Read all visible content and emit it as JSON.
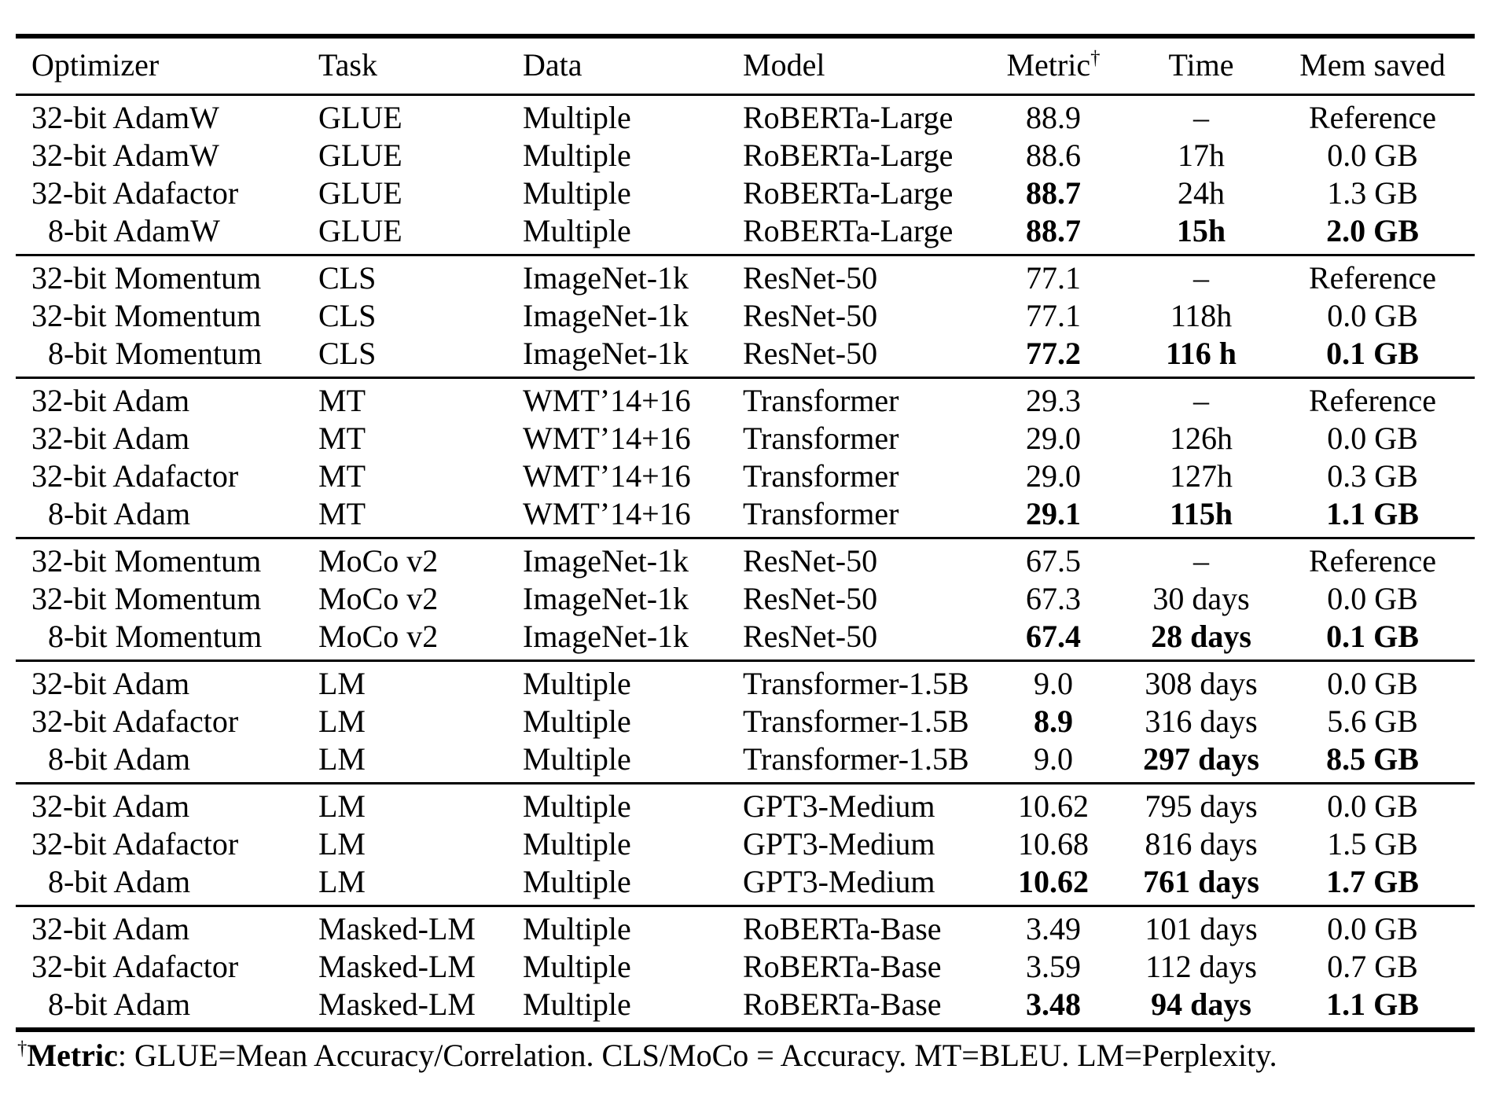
{
  "page": {
    "background": "#ffffff",
    "text_color": "#000000",
    "rule_color": "#000000"
  },
  "table": {
    "columns": [
      {
        "label": "Optimizer",
        "align": "left"
      },
      {
        "label": "Task",
        "align": "left"
      },
      {
        "label": "Data",
        "align": "left"
      },
      {
        "label": "Model",
        "align": "left"
      },
      {
        "label": "Metric",
        "sup": "†",
        "align": "center"
      },
      {
        "label": "Time",
        "align": "center"
      },
      {
        "label": "Mem saved",
        "align": "center"
      }
    ],
    "groups": [
      {
        "name": "glue",
        "rows": [
          {
            "optimizer": "32-bit AdamW",
            "indent": false,
            "task": "GLUE",
            "data": "Multiple",
            "model": "RoBERTa-Large",
            "metric": "88.9",
            "time": "–",
            "mem": "Reference",
            "bold": []
          },
          {
            "optimizer": "32-bit AdamW",
            "indent": false,
            "task": "GLUE",
            "data": "Multiple",
            "model": "RoBERTa-Large",
            "metric": "88.6",
            "time": "17h",
            "mem": "0.0 GB",
            "bold": []
          },
          {
            "optimizer": "32-bit Adafactor",
            "indent": false,
            "task": "GLUE",
            "data": "Multiple",
            "model": "RoBERTa-Large",
            "metric": "88.7",
            "time": "24h",
            "mem": "1.3 GB",
            "bold": [
              "metric"
            ]
          },
          {
            "optimizer": "8-bit AdamW",
            "indent": true,
            "task": "GLUE",
            "data": "Multiple",
            "model": "RoBERTa-Large",
            "metric": "88.7",
            "time": "15h",
            "mem": "2.0 GB",
            "bold": [
              "metric",
              "time",
              "mem"
            ]
          }
        ]
      },
      {
        "name": "cls",
        "rows": [
          {
            "optimizer": "32-bit Momentum",
            "indent": false,
            "task": "CLS",
            "data": "ImageNet-1k",
            "model": "ResNet-50",
            "metric": "77.1",
            "time": "–",
            "mem": "Reference",
            "bold": []
          },
          {
            "optimizer": "32-bit Momentum",
            "indent": false,
            "task": "CLS",
            "data": "ImageNet-1k",
            "model": "ResNet-50",
            "metric": "77.1",
            "time": "118h",
            "mem": "0.0 GB",
            "bold": []
          },
          {
            "optimizer": "8-bit Momentum",
            "indent": true,
            "task": "CLS",
            "data": "ImageNet-1k",
            "model": "ResNet-50",
            "metric": "77.2",
            "time": "116 h",
            "mem": "0.1 GB",
            "bold": [
              "metric",
              "time",
              "mem"
            ]
          }
        ]
      },
      {
        "name": "mt",
        "rows": [
          {
            "optimizer": "32-bit Adam",
            "indent": false,
            "task": "MT",
            "data": "WMT’14+16",
            "model": "Transformer",
            "metric": "29.3",
            "time": "–",
            "mem": "Reference",
            "bold": []
          },
          {
            "optimizer": "32-bit Adam",
            "indent": false,
            "task": "MT",
            "data": "WMT’14+16",
            "model": "Transformer",
            "metric": "29.0",
            "time": "126h",
            "mem": "0.0 GB",
            "bold": []
          },
          {
            "optimizer": "32-bit Adafactor",
            "indent": false,
            "task": "MT",
            "data": "WMT’14+16",
            "model": "Transformer",
            "metric": "29.0",
            "time": "127h",
            "mem": "0.3 GB",
            "bold": []
          },
          {
            "optimizer": "8-bit Adam",
            "indent": true,
            "task": "MT",
            "data": "WMT’14+16",
            "model": "Transformer",
            "metric": "29.1",
            "time": "115h",
            "mem": "1.1 GB",
            "bold": [
              "metric",
              "time",
              "mem"
            ]
          }
        ]
      },
      {
        "name": "moco-v2",
        "rows": [
          {
            "optimizer": "32-bit Momentum",
            "indent": false,
            "task": "MoCo v2",
            "data": "ImageNet-1k",
            "model": "ResNet-50",
            "metric": "67.5",
            "time": "–",
            "mem": "Reference",
            "bold": []
          },
          {
            "optimizer": "32-bit Momentum",
            "indent": false,
            "task": "MoCo v2",
            "data": "ImageNet-1k",
            "model": "ResNet-50",
            "metric": "67.3",
            "time": "30 days",
            "mem": "0.0 GB",
            "bold": []
          },
          {
            "optimizer": "8-bit Momentum",
            "indent": true,
            "task": "MoCo v2",
            "data": "ImageNet-1k",
            "model": "ResNet-50",
            "metric": "67.4",
            "time": "28 days",
            "mem": "0.1 GB",
            "bold": [
              "metric",
              "time",
              "mem"
            ]
          }
        ]
      },
      {
        "name": "lm-transformer-1.5b",
        "rows": [
          {
            "optimizer": "32-bit Adam",
            "indent": false,
            "task": "LM",
            "data": "Multiple",
            "model": "Transformer-1.5B",
            "metric": "9.0",
            "time": "308 days",
            "mem": "0.0 GB",
            "bold": []
          },
          {
            "optimizer": "32-bit Adafactor",
            "indent": false,
            "task": "LM",
            "data": "Multiple",
            "model": "Transformer-1.5B",
            "metric": "8.9",
            "time": "316 days",
            "mem": "5.6 GB",
            "bold": [
              "metric"
            ]
          },
          {
            "optimizer": "8-bit Adam",
            "indent": true,
            "task": "LM",
            "data": "Multiple",
            "model": "Transformer-1.5B",
            "metric": "9.0",
            "time": "297 days",
            "mem": "8.5 GB",
            "bold": [
              "time",
              "mem"
            ]
          }
        ]
      },
      {
        "name": "lm-gpt3-medium",
        "rows": [
          {
            "optimizer": "32-bit Adam",
            "indent": false,
            "task": "LM",
            "data": "Multiple",
            "model": "GPT3-Medium",
            "metric": "10.62",
            "time": "795 days",
            "mem": "0.0 GB",
            "bold": []
          },
          {
            "optimizer": "32-bit Adafactor",
            "indent": false,
            "task": "LM",
            "data": "Multiple",
            "model": "GPT3-Medium",
            "metric": "10.68",
            "time": "816 days",
            "mem": "1.5 GB",
            "bold": []
          },
          {
            "optimizer": "8-bit Adam",
            "indent": true,
            "task": "LM",
            "data": "Multiple",
            "model": "GPT3-Medium",
            "metric": "10.62",
            "time": "761 days",
            "mem": "1.7 GB",
            "bold": [
              "metric",
              "time",
              "mem"
            ]
          }
        ]
      },
      {
        "name": "masked-lm",
        "rows": [
          {
            "optimizer": "32-bit Adam",
            "indent": false,
            "task": "Masked-LM",
            "data": "Multiple",
            "model": "RoBERTa-Base",
            "metric": "3.49",
            "time": "101 days",
            "mem": "0.0 GB",
            "bold": []
          },
          {
            "optimizer": "32-bit Adafactor",
            "indent": false,
            "task": "Masked-LM",
            "data": "Multiple",
            "model": "RoBERTa-Base",
            "metric": "3.59",
            "time": "112 days",
            "mem": "0.7 GB",
            "bold": []
          },
          {
            "optimizer": "8-bit Adam",
            "indent": true,
            "task": "Masked-LM",
            "data": "Multiple",
            "model": "RoBERTa-Base",
            "metric": "3.48",
            "time": "94 days",
            "mem": "1.1 GB",
            "bold": [
              "metric",
              "time",
              "mem"
            ]
          }
        ]
      }
    ]
  },
  "footnote": {
    "dagger": "†",
    "term": "Metric",
    "text": ": GLUE=Mean Accuracy/Correlation. CLS/MoCo = Accuracy. MT=BLEU. LM=Perplexity."
  }
}
